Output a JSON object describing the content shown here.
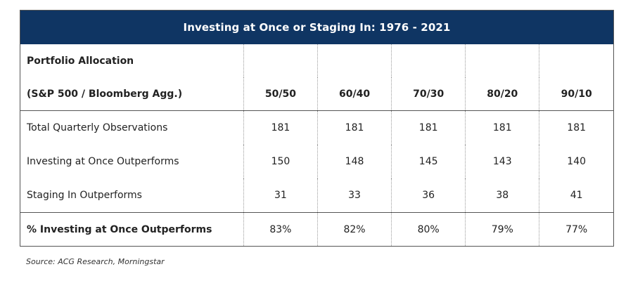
{
  "title": "Investing at Once or Staging In: 1976 - 2021",
  "header": {
    "label_line1": "Portfolio Allocation",
    "label_line2": "(S&P 500 / Bloomberg Agg.)",
    "allocations": [
      "50/50",
      "60/40",
      "70/30",
      "80/20",
      "90/10"
    ]
  },
  "rows": [
    {
      "label": "Total Quarterly Observations",
      "values": [
        "181",
        "181",
        "181",
        "181",
        "181"
      ]
    },
    {
      "label": "Investing at Once Outperforms",
      "values": [
        "150",
        "148",
        "145",
        "143",
        "140"
      ]
    },
    {
      "label": "Staging In Outperforms",
      "values": [
        "31",
        "33",
        "36",
        "38",
        "41"
      ]
    }
  ],
  "summary": {
    "label": "% Investing at Once Outperforms",
    "values": [
      "83%",
      "82%",
      "80%",
      "79%",
      "77%"
    ]
  },
  "source": "Source: ACG Research, Morningstar"
}
